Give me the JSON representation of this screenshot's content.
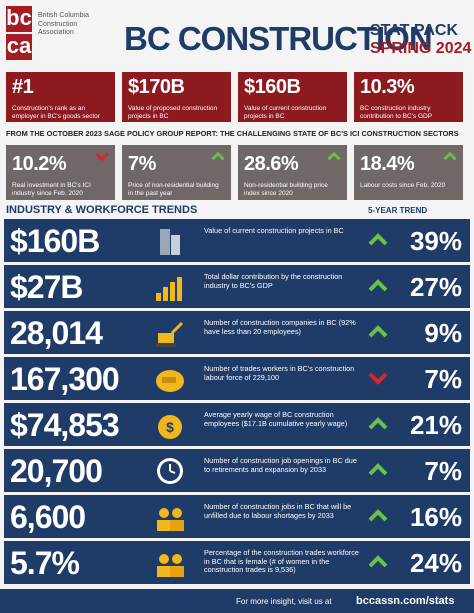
{
  "header": {
    "logo": [
      "bc",
      "ca"
    ],
    "organization": "British Columbia Construction Association",
    "title": "BC CONSTRUCTION",
    "subtitle": "STAT PACK",
    "edition": "SPRING 2024"
  },
  "highlights": [
    {
      "value": "#1",
      "description": "Construction's rank as an employer in BC's goods sector"
    },
    {
      "value": "$170B",
      "description": "Value of proposed construction projects in BC"
    },
    {
      "value": "$160B",
      "description": "Value of current construction projects in BC"
    },
    {
      "value": "10.3%",
      "description": "BC construction industry contribution to BC's GDP"
    }
  ],
  "report": {
    "heading": "FROM THE OCTOBER 2023 SAGE POLICY GROUP REPORT: THE CHALLENGING STATE OF BC'S ICI CONSTRUCTION SECTORS",
    "items": [
      {
        "value": "10.2%",
        "trend": "down",
        "description": "Real investment in BC's ICI industry since Feb. 2020"
      },
      {
        "value": "7%",
        "trend": "up",
        "description": "Price of non-residential building in the past year"
      },
      {
        "value": "28.6%",
        "trend": "up",
        "description": "Non-residential building price index since 2020"
      },
      {
        "value": "18.4%",
        "trend": "up",
        "description": "Labour costs since Feb. 2020"
      }
    ]
  },
  "trends": {
    "heading": "INDUSTRY & WORKFORCE TRENDS",
    "column": "5-YEAR TREND",
    "rows": [
      {
        "value": "$160B",
        "description": "Value of current construction projects in BC",
        "trend": "up",
        "change": "39%"
      },
      {
        "value": "$27B",
        "description": "Total dollar contribution by the construction industry to BC's GDP",
        "trend": "up",
        "change": "27%"
      },
      {
        "value": "28,014",
        "description": "Number of construction companies in BC (92% have less than 20 employees)",
        "trend": "up",
        "change": "9%"
      },
      {
        "value": "167,300",
        "description": "Number of trades workers in BC's construction labour force of 229,100",
        "trend": "down",
        "change": "7%"
      },
      {
        "value": "$74,853",
        "description": "Average yearly wage of BC construction employees ($17.1B cumulative yearly wage)",
        "trend": "up",
        "change": "21%"
      },
      {
        "value": "20,700",
        "description": "Number of construction job openings in BC due to retirements and expansion by 2033",
        "trend": "up",
        "change": "7%"
      },
      {
        "value": "6,600",
        "description": "Number of construction jobs in BC that will be unfilled due to labour shortages by 2033",
        "trend": "up",
        "change": "16%"
      },
      {
        "value": "5.7%",
        "description": "Percentage of the construction trades workforce in BC that is female (# of women in the construction trades is 9,536)",
        "trend": "up",
        "change": "24%"
      }
    ]
  },
  "footer": {
    "text": "For more insight, visit us at",
    "link": "bccassn.com/stats"
  }
}
